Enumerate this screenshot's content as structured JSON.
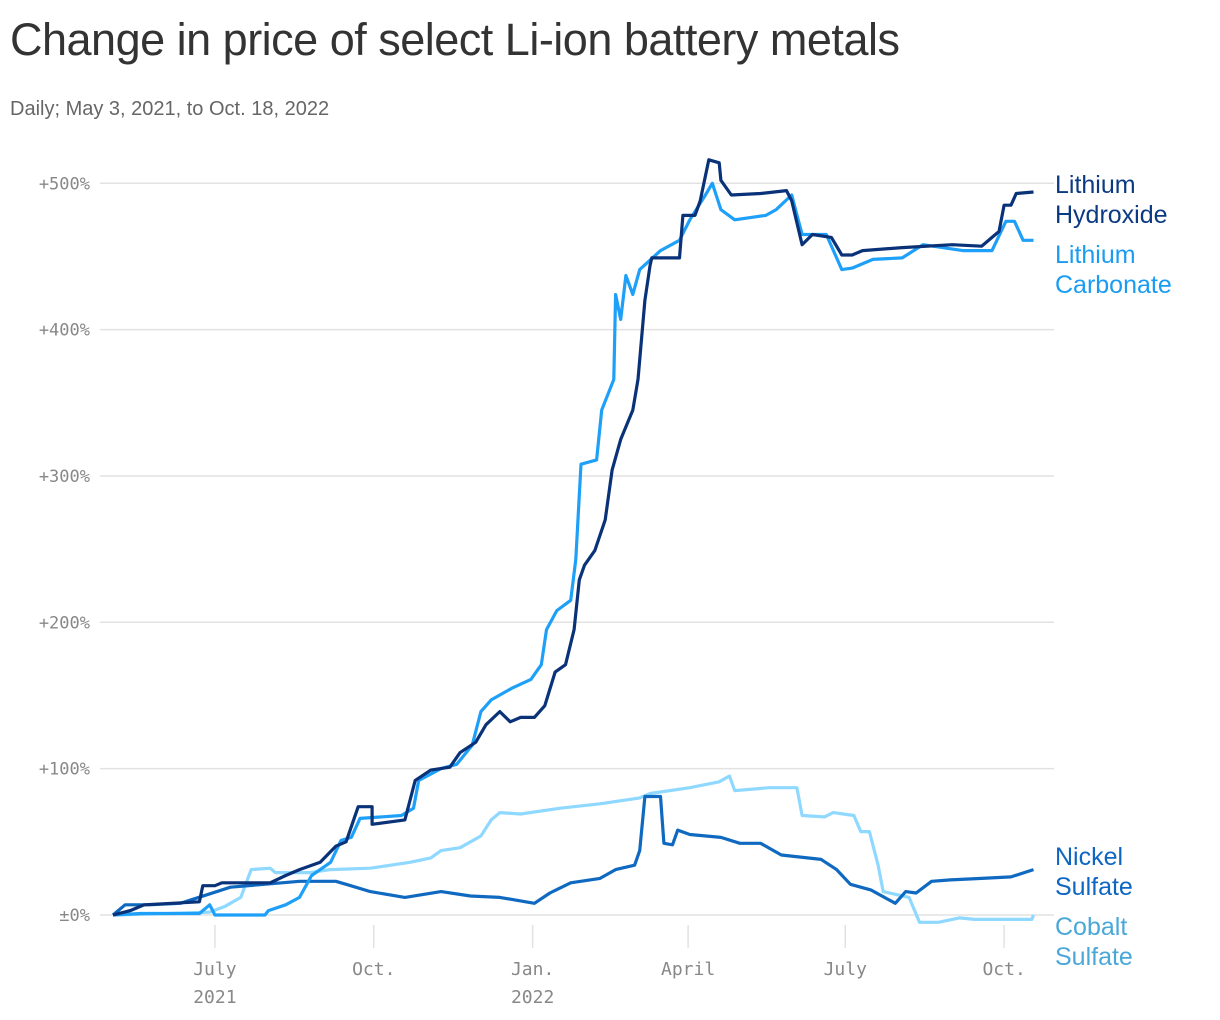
{
  "title": "Change in price of select Li-ion battery metals",
  "subtitle": "Daily; May 3, 2021, to Oct. 18, 2022",
  "chart_data": {
    "type": "line",
    "title": "Change in price of select Li-ion battery metals",
    "subtitle": "Daily; May 3, 2021, to Oct. 18, 2022",
    "xlim": [
      "2021-05-03",
      "2022-10-18"
    ],
    "ylim": [
      -10,
      520
    ],
    "grid": true,
    "y_ticks": [
      {
        "value": 0,
        "label": "±0%"
      },
      {
        "value": 100,
        "label": "+100%"
      },
      {
        "value": 200,
        "label": "+200%"
      },
      {
        "value": 300,
        "label": "+300%"
      },
      {
        "value": 400,
        "label": "+400%"
      },
      {
        "value": 500,
        "label": "+500%"
      }
    ],
    "x_ticks": [
      {
        "date": "2021-07-01",
        "label": "July",
        "label2": "2021"
      },
      {
        "date": "2021-10-01",
        "label": "Oct.",
        "label2": ""
      },
      {
        "date": "2022-01-01",
        "label": "Jan.",
        "label2": "2022"
      },
      {
        "date": "2022-04-01",
        "label": "April",
        "label2": ""
      },
      {
        "date": "2022-07-01",
        "label": "July",
        "label2": ""
      },
      {
        "date": "2022-10-01",
        "label": "Oct.",
        "label2": ""
      }
    ],
    "series": [
      {
        "name": "Lithium Hydroxide",
        "label_lines": [
          "Lithium",
          "Hydroxide"
        ],
        "color": "#0a3278",
        "label_color": "#0b3a82",
        "points": [
          [
            "2021-05-03",
            0
          ],
          [
            "2021-05-13",
            3
          ],
          [
            "2021-05-21",
            7
          ],
          [
            "2021-06-22",
            9
          ],
          [
            "2021-06-24",
            20
          ],
          [
            "2021-07-01",
            20
          ],
          [
            "2021-07-05",
            22
          ],
          [
            "2021-08-02",
            22
          ],
          [
            "2021-08-11",
            27
          ],
          [
            "2021-08-19",
            31
          ],
          [
            "2021-08-31",
            36
          ],
          [
            "2021-09-09",
            47
          ],
          [
            "2021-09-15",
            50
          ],
          [
            "2021-09-22",
            74
          ],
          [
            "2021-09-30",
            74
          ],
          [
            "2021-09-30",
            62
          ],
          [
            "2021-10-19",
            65
          ],
          [
            "2021-10-25",
            92
          ],
          [
            "2021-11-03",
            99
          ],
          [
            "2021-11-14",
            101
          ],
          [
            "2021-11-20",
            111
          ],
          [
            "2021-11-29",
            118
          ],
          [
            "2021-12-05",
            130
          ],
          [
            "2021-12-13",
            139
          ],
          [
            "2021-12-19",
            132
          ],
          [
            "2021-12-25",
            135
          ],
          [
            "2022-01-02",
            135
          ],
          [
            "2022-01-08",
            143
          ],
          [
            "2022-01-14",
            166
          ],
          [
            "2022-01-20",
            171
          ],
          [
            "2022-01-25",
            195
          ],
          [
            "2022-01-28",
            229
          ],
          [
            "2022-01-31",
            239
          ],
          [
            "2022-02-06",
            249
          ],
          [
            "2022-02-12",
            270
          ],
          [
            "2022-02-16",
            304
          ],
          [
            "2022-02-21",
            325
          ],
          [
            "2022-02-28",
            345
          ],
          [
            "2022-03-03",
            366
          ],
          [
            "2022-03-07",
            420
          ],
          [
            "2022-03-10",
            444
          ],
          [
            "2022-03-11",
            449
          ],
          [
            "2022-03-27",
            449
          ],
          [
            "2022-03-29",
            478
          ],
          [
            "2022-04-05",
            478
          ],
          [
            "2022-04-08",
            488
          ],
          [
            "2022-04-13",
            516
          ],
          [
            "2022-04-19",
            514
          ],
          [
            "2022-04-20",
            502
          ],
          [
            "2022-04-26",
            492
          ],
          [
            "2022-05-13",
            493
          ],
          [
            "2022-05-28",
            495
          ],
          [
            "2022-05-31",
            488
          ],
          [
            "2022-06-06",
            458
          ],
          [
            "2022-06-12",
            465
          ],
          [
            "2022-06-23",
            463
          ],
          [
            "2022-06-29",
            451
          ],
          [
            "2022-07-05",
            451
          ],
          [
            "2022-07-11",
            454
          ],
          [
            "2022-08-03",
            456
          ],
          [
            "2022-09-01",
            458
          ],
          [
            "2022-09-18",
            457
          ],
          [
            "2022-09-24",
            463
          ],
          [
            "2022-09-28",
            467
          ],
          [
            "2022-10-01",
            485
          ],
          [
            "2022-10-05",
            485
          ],
          [
            "2022-10-08",
            493
          ],
          [
            "2022-10-18",
            494
          ]
        ]
      },
      {
        "name": "Lithium Carbonate",
        "label_lines": [
          "Lithium",
          "Carbonate"
        ],
        "color": "#1ea0f8",
        "label_color": "#1a9cf2",
        "points": [
          [
            "2021-05-03",
            0
          ],
          [
            "2021-05-19",
            1
          ],
          [
            "2021-06-22",
            1
          ],
          [
            "2021-06-28",
            7
          ],
          [
            "2021-07-01",
            0
          ],
          [
            "2021-07-30",
            0
          ],
          [
            "2021-08-01",
            3
          ],
          [
            "2021-08-11",
            7
          ],
          [
            "2021-08-19",
            12
          ],
          [
            "2021-08-26",
            27
          ],
          [
            "2021-08-31",
            31
          ],
          [
            "2021-09-06",
            36
          ],
          [
            "2021-09-12",
            51
          ],
          [
            "2021-09-18",
            53
          ],
          [
            "2021-09-23",
            66
          ],
          [
            "2021-10-17",
            68
          ],
          [
            "2021-10-24",
            73
          ],
          [
            "2021-10-27",
            92
          ],
          [
            "2021-11-09",
            100
          ],
          [
            "2021-11-18",
            103
          ],
          [
            "2021-11-27",
            116
          ],
          [
            "2021-12-02",
            139
          ],
          [
            "2021-12-08",
            147
          ],
          [
            "2021-12-20",
            155
          ],
          [
            "2021-12-31",
            161
          ],
          [
            "2022-01-06",
            171
          ],
          [
            "2022-01-09",
            195
          ],
          [
            "2022-01-15",
            208
          ],
          [
            "2022-01-23",
            215
          ],
          [
            "2022-01-26",
            243
          ],
          [
            "2022-01-29",
            308
          ],
          [
            "2022-02-07",
            311
          ],
          [
            "2022-02-10",
            345
          ],
          [
            "2022-02-17",
            366
          ],
          [
            "2022-02-18",
            424
          ],
          [
            "2022-02-21",
            407
          ],
          [
            "2022-02-24",
            437
          ],
          [
            "2022-02-28",
            424
          ],
          [
            "2022-03-04",
            441
          ],
          [
            "2022-03-16",
            454
          ],
          [
            "2022-03-27",
            461
          ],
          [
            "2022-04-02",
            475
          ],
          [
            "2022-04-11",
            492
          ],
          [
            "2022-04-15",
            500
          ],
          [
            "2022-04-20",
            482
          ],
          [
            "2022-04-28",
            475
          ],
          [
            "2022-05-16",
            478
          ],
          [
            "2022-05-22",
            482
          ],
          [
            "2022-05-31",
            492
          ],
          [
            "2022-06-06",
            465
          ],
          [
            "2022-06-20",
            465
          ],
          [
            "2022-06-29",
            441
          ],
          [
            "2022-07-05",
            442
          ],
          [
            "2022-07-17",
            448
          ],
          [
            "2022-08-03",
            449
          ],
          [
            "2022-08-15",
            458
          ],
          [
            "2022-09-07",
            454
          ],
          [
            "2022-09-24",
            454
          ],
          [
            "2022-10-02",
            474
          ],
          [
            "2022-10-07",
            474
          ],
          [
            "2022-10-12",
            461
          ],
          [
            "2022-10-18",
            461
          ]
        ]
      },
      {
        "name": "Nickel Sulfate",
        "label_lines": [
          "Nickel",
          "Sulfate"
        ],
        "color": "#0f69c0",
        "label_color": "#0d66c2",
        "points": [
          [
            "2021-05-03",
            0
          ],
          [
            "2021-05-10",
            7
          ],
          [
            "2021-05-24",
            7
          ],
          [
            "2021-06-11",
            8
          ],
          [
            "2021-07-10",
            19
          ],
          [
            "2021-08-19",
            23
          ],
          [
            "2021-09-09",
            23
          ],
          [
            "2021-09-15",
            21
          ],
          [
            "2021-09-29",
            16
          ],
          [
            "2021-10-19",
            12
          ],
          [
            "2021-11-09",
            16
          ],
          [
            "2021-11-26",
            13
          ],
          [
            "2021-12-13",
            12
          ],
          [
            "2022-01-02",
            8
          ],
          [
            "2022-01-11",
            15
          ],
          [
            "2022-01-23",
            22
          ],
          [
            "2022-02-09",
            25
          ],
          [
            "2022-02-18",
            31
          ],
          [
            "2022-03-01",
            34
          ],
          [
            "2022-03-04",
            44
          ],
          [
            "2022-03-07",
            81
          ],
          [
            "2022-03-16",
            81
          ],
          [
            "2022-03-18",
            49
          ],
          [
            "2022-03-23",
            48
          ],
          [
            "2022-03-26",
            58
          ],
          [
            "2022-04-02",
            55
          ],
          [
            "2022-04-20",
            53
          ],
          [
            "2022-05-01",
            49
          ],
          [
            "2022-05-13",
            49
          ],
          [
            "2022-05-25",
            41
          ],
          [
            "2022-06-17",
            38
          ],
          [
            "2022-06-26",
            31
          ],
          [
            "2022-07-04",
            21
          ],
          [
            "2022-07-16",
            17
          ],
          [
            "2022-07-30",
            8
          ],
          [
            "2022-08-05",
            16
          ],
          [
            "2022-08-11",
            15
          ],
          [
            "2022-08-20",
            23
          ],
          [
            "2022-08-31",
            24
          ],
          [
            "2022-09-18",
            25
          ],
          [
            "2022-10-05",
            26
          ],
          [
            "2022-10-18",
            31
          ]
        ]
      },
      {
        "name": "Cobalt Sulfate",
        "label_lines": [
          "Cobalt",
          "Sulfate"
        ],
        "color": "#8fd8ff",
        "label_color": "#4aa8d8",
        "points": [
          [
            "2021-05-03",
            0
          ],
          [
            "2021-06-05",
            1
          ],
          [
            "2021-06-28",
            2
          ],
          [
            "2021-07-07",
            6
          ],
          [
            "2021-07-16",
            12
          ],
          [
            "2021-07-22",
            31
          ],
          [
            "2021-08-02",
            32
          ],
          [
            "2021-08-05",
            29
          ],
          [
            "2021-08-25",
            29
          ],
          [
            "2021-09-06",
            31
          ],
          [
            "2021-09-29",
            32
          ],
          [
            "2021-10-22",
            36
          ],
          [
            "2021-11-03",
            39
          ],
          [
            "2021-11-09",
            44
          ],
          [
            "2021-11-20",
            46
          ],
          [
            "2021-12-02",
            54
          ],
          [
            "2021-12-08",
            65
          ],
          [
            "2021-12-13",
            70
          ],
          [
            "2021-12-25",
            69
          ],
          [
            "2022-01-17",
            73
          ],
          [
            "2022-02-09",
            76
          ],
          [
            "2022-03-04",
            80
          ],
          [
            "2022-03-10",
            83
          ],
          [
            "2022-04-02",
            87
          ],
          [
            "2022-04-19",
            91
          ],
          [
            "2022-04-25",
            95
          ],
          [
            "2022-04-28",
            85
          ],
          [
            "2022-05-18",
            87
          ],
          [
            "2022-06-03",
            87
          ],
          [
            "2022-06-06",
            68
          ],
          [
            "2022-06-19",
            67
          ],
          [
            "2022-06-24",
            70
          ],
          [
            "2022-07-06",
            68
          ],
          [
            "2022-07-10",
            57
          ],
          [
            "2022-07-15",
            57
          ],
          [
            "2022-07-20",
            34
          ],
          [
            "2022-07-23",
            16
          ],
          [
            "2022-08-07",
            12
          ],
          [
            "2022-08-13",
            -5
          ],
          [
            "2022-08-24",
            -5
          ],
          [
            "2022-09-05",
            -2
          ],
          [
            "2022-09-14",
            -3
          ],
          [
            "2022-10-17",
            -3
          ],
          [
            "2022-10-18",
            0
          ]
        ]
      }
    ]
  }
}
